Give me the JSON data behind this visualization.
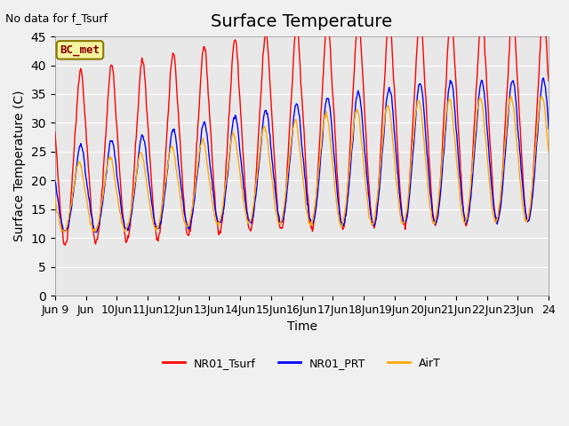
{
  "title": "Surface Temperature",
  "ylabel": "Surface Temperature (C)",
  "xlabel": "Time",
  "annotation": "No data for f_Tsurf",
  "bc_label": "BC_met",
  "legend": [
    "NR01_Tsurf",
    "NR01_PRT",
    "AirT"
  ],
  "legend_colors": [
    "#ff0000",
    "#0000ff",
    "#ffaa00"
  ],
  "ylim": [
    0,
    45
  ],
  "yticks": [
    0,
    5,
    10,
    15,
    20,
    25,
    30,
    35,
    40,
    45
  ],
  "plot_bg": "#e8e8e8",
  "title_fontsize": 14,
  "label_fontsize": 10,
  "tick_fontsize": 9,
  "tick_labels": [
    "Jun 9",
    "Jun",
    "10Jun",
    "11Jun",
    "12Jun",
    "13Jun",
    "14Jun",
    "15Jun",
    "16Jun",
    "17Jun",
    "18Jun",
    "19Jun",
    "20Jun",
    "21Jun",
    "22Jun",
    "23Jun",
    "24"
  ]
}
